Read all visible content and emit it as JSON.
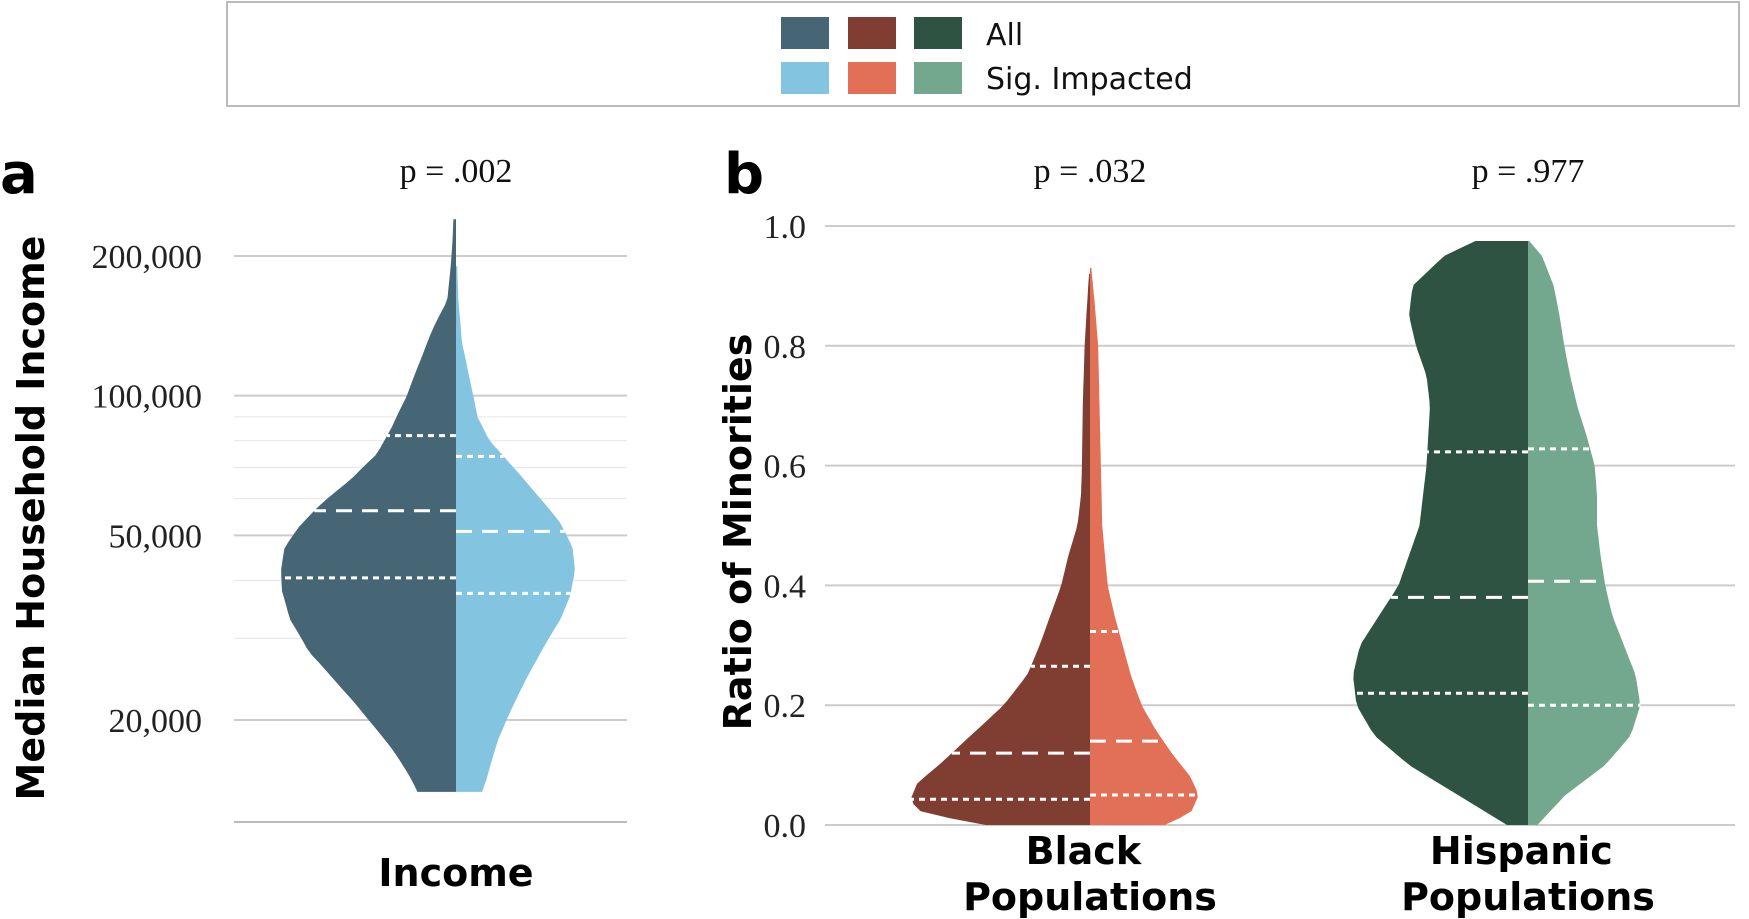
{
  "legend": {
    "rows": [
      "All",
      "Sig. Impacted"
    ],
    "colors_all": [
      "#466676",
      "#803e33",
      "#2f5342"
    ],
    "colors_sig": [
      "#83c4e0",
      "#e27057",
      "#74a88e"
    ]
  },
  "chart_data": [
    {
      "panel": "a",
      "type": "violin",
      "yscale": "log",
      "ylabel": "Median Household Income",
      "ylim": [
        12000,
        250000
      ],
      "yticks": [
        20000,
        50000,
        100000,
        200000
      ],
      "ytick_labels": [
        "20,000",
        "50,000",
        "100,000",
        "200,000"
      ],
      "minor_gridlines": [
        30000,
        40000,
        60000,
        70000,
        80000,
        90000
      ],
      "categories": [
        "Income"
      ],
      "pvalues": [
        "p = .002"
      ],
      "series": [
        {
          "name": "All",
          "color": "#466676",
          "range": [
            14000,
            240000
          ],
          "quartiles": [
            40500,
            56500,
            82000
          ],
          "profile": [
            [
              14000,
              0.22
            ],
            [
              15000,
              0.26
            ],
            [
              17000,
              0.35
            ],
            [
              20000,
              0.5
            ],
            [
              24000,
              0.68
            ],
            [
              28000,
              0.84
            ],
            [
              33000,
              0.95
            ],
            [
              38000,
              0.995
            ],
            [
              42000,
              1.0
            ],
            [
              47000,
              0.98
            ],
            [
              52000,
              0.9
            ],
            [
              58000,
              0.78
            ],
            [
              66000,
              0.6
            ],
            [
              75000,
              0.45
            ],
            [
              85000,
              0.37
            ],
            [
              100000,
              0.28
            ],
            [
              120000,
              0.2
            ],
            [
              140000,
              0.13
            ],
            [
              160000,
              0.05
            ],
            [
              190000,
              0.03
            ],
            [
              215000,
              0.02
            ],
            [
              240000,
              0.015
            ]
          ]
        },
        {
          "name": "Sig. Impacted",
          "color": "#83c4e0",
          "range": [
            14000,
            190000
          ],
          "quartiles": [
            37500,
            51000,
            74000
          ],
          "profile": [
            [
              14000,
              0.22
            ],
            [
              15000,
              0.26
            ],
            [
              18000,
              0.35
            ],
            [
              22000,
              0.5
            ],
            [
              27000,
              0.68
            ],
            [
              33000,
              0.88
            ],
            [
              37000,
              0.96
            ],
            [
              42000,
              1.0
            ],
            [
              47000,
              0.98
            ],
            [
              53000,
              0.88
            ],
            [
              62000,
              0.66
            ],
            [
              72000,
              0.44
            ],
            [
              80000,
              0.28
            ],
            [
              90000,
              0.18
            ],
            [
              110000,
              0.11
            ],
            [
              130000,
              0.05
            ],
            [
              160000,
              0.02
            ],
            [
              190000,
              0.01
            ]
          ]
        }
      ]
    },
    {
      "panel": "b",
      "type": "violin",
      "ylabel": "Ratio of Minorities",
      "ylim": [
        0.0,
        1.0
      ],
      "yticks": [
        0.0,
        0.2,
        0.4,
        0.6,
        0.8,
        1.0
      ],
      "ytick_labels": [
        "0.0",
        "0.2",
        "0.4",
        "0.6",
        "0.8",
        "1.0"
      ],
      "categories": [
        "Black\nPopulations",
        "Hispanic\nPopulations"
      ],
      "category_lines": [
        [
          "Black",
          "Populations"
        ],
        [
          "Hispanic",
          "Populations"
        ]
      ],
      "pvalues": [
        "p = .032",
        "p = .977"
      ],
      "groups": [
        {
          "left": {
            "name": "All",
            "color": "#803e33",
            "range": [
              0.0,
              0.92
            ],
            "quartiles": [
              0.043,
              0.12,
              0.265
            ],
            "profile": [
              [
                0.0,
                0.58
              ],
              [
                0.02,
                0.93
              ],
              [
                0.04,
                1.0
              ],
              [
                0.07,
                0.96
              ],
              [
                0.1,
                0.84
              ],
              [
                0.15,
                0.66
              ],
              [
                0.2,
                0.48
              ],
              [
                0.25,
                0.35
              ],
              [
                0.3,
                0.28
              ],
              [
                0.35,
                0.22
              ],
              [
                0.4,
                0.16
              ],
              [
                0.45,
                0.12
              ],
              [
                0.5,
                0.07
              ],
              [
                0.55,
                0.05
              ],
              [
                0.6,
                0.045
              ],
              [
                0.7,
                0.04
              ],
              [
                0.8,
                0.03
              ],
              [
                0.9,
                0.01
              ],
              [
                0.92,
                0.005
              ]
            ]
          },
          "right": {
            "name": "Sig. Impacted",
            "color": "#e27057",
            "range": [
              0.0,
              0.93
            ],
            "quartiles": [
              0.05,
              0.14,
              0.323
            ],
            "profile": [
              [
                0.0,
                0.55
              ],
              [
                0.02,
                0.74
              ],
              [
                0.05,
                0.8
              ],
              [
                0.08,
                0.74
              ],
              [
                0.12,
                0.6
              ],
              [
                0.16,
                0.48
              ],
              [
                0.2,
                0.38
              ],
              [
                0.25,
                0.3
              ],
              [
                0.3,
                0.24
              ],
              [
                0.35,
                0.18
              ],
              [
                0.4,
                0.13
              ],
              [
                0.5,
                0.09
              ],
              [
                0.6,
                0.08
              ],
              [
                0.7,
                0.07
              ],
              [
                0.8,
                0.06
              ],
              [
                0.87,
                0.035
              ],
              [
                0.93,
                0.01
              ]
            ]
          }
        },
        {
          "left": {
            "name": "All",
            "color": "#2f5342",
            "range": [
              0.0,
              0.975
            ],
            "quartiles": [
              0.22,
              0.38,
              0.623
            ],
            "profile": [
              [
                0.0,
                0.12
              ],
              [
                0.05,
                0.4
              ],
              [
                0.1,
                0.68
              ],
              [
                0.15,
                0.88
              ],
              [
                0.2,
                0.98
              ],
              [
                0.25,
                1.0
              ],
              [
                0.3,
                0.96
              ],
              [
                0.35,
                0.85
              ],
              [
                0.4,
                0.74
              ],
              [
                0.45,
                0.68
              ],
              [
                0.5,
                0.62
              ],
              [
                0.55,
                0.6
              ],
              [
                0.6,
                0.58
              ],
              [
                0.65,
                0.57
              ],
              [
                0.7,
                0.56
              ],
              [
                0.75,
                0.58
              ],
              [
                0.8,
                0.64
              ],
              [
                0.85,
                0.68
              ],
              [
                0.9,
                0.66
              ],
              [
                0.95,
                0.48
              ],
              [
                0.975,
                0.3
              ]
            ]
          },
          "right": {
            "name": "Sig. Impacted",
            "color": "#74a88e",
            "range": [
              0.0,
              0.975
            ],
            "quartiles": [
              0.2,
              0.407,
              0.628
            ],
            "profile": [
              [
                0.0,
                0.08
              ],
              [
                0.05,
                0.32
              ],
              [
                0.1,
                0.66
              ],
              [
                0.15,
                0.88
              ],
              [
                0.2,
                0.96
              ],
              [
                0.25,
                0.92
              ],
              [
                0.3,
                0.82
              ],
              [
                0.35,
                0.72
              ],
              [
                0.4,
                0.66
              ],
              [
                0.45,
                0.62
              ],
              [
                0.5,
                0.59
              ],
              [
                0.55,
                0.59
              ],
              [
                0.6,
                0.57
              ],
              [
                0.65,
                0.5
              ],
              [
                0.7,
                0.42
              ],
              [
                0.75,
                0.36
              ],
              [
                0.8,
                0.31
              ],
              [
                0.85,
                0.27
              ],
              [
                0.9,
                0.22
              ],
              [
                0.95,
                0.12
              ],
              [
                0.975,
                0.01
              ]
            ]
          }
        }
      ]
    }
  ]
}
